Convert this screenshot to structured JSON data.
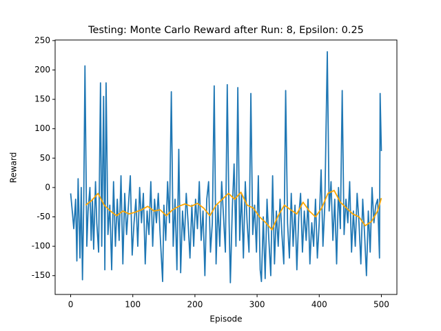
{
  "chart_data": {
    "type": "line",
    "title": "Testing: Monte Carlo Reward after Run: 8, Epsilon: 0.25",
    "x_label": "Episode",
    "y_label": "Reward",
    "xlim": [
      -25,
      525
    ],
    "ylim": [
      -182,
      251
    ],
    "xticks": [
      0,
      100,
      200,
      300,
      400,
      500
    ],
    "yticks": [
      -150,
      -100,
      -50,
      0,
      50,
      100,
      150,
      200,
      250
    ],
    "series": [
      {
        "color": "#1f77b4",
        "x": [
          0,
          3,
          5,
          8,
          10,
          12,
          15,
          17,
          19,
          21,
          23,
          26,
          28,
          31,
          33,
          35,
          37,
          40,
          42,
          45,
          48,
          50,
          53,
          55,
          57,
          60,
          63,
          66,
          69,
          72,
          75,
          78,
          81,
          84,
          87,
          90,
          93,
          96,
          99,
          102,
          105,
          108,
          111,
          114,
          117,
          120,
          123,
          126,
          129,
          132,
          135,
          138,
          141,
          144,
          148,
          150,
          153,
          156,
          159,
          162,
          165,
          168,
          171,
          174,
          177,
          180,
          183,
          186,
          189,
          192,
          195,
          198,
          201,
          204,
          207,
          210,
          213,
          216,
          219,
          222,
          225,
          228,
          231,
          234,
          237,
          240,
          243,
          246,
          249,
          252,
          255,
          257,
          260,
          263,
          266,
          269,
          272,
          275,
          278,
          281,
          284,
          287,
          290,
          293,
          296,
          299,
          302,
          305,
          307,
          310,
          313,
          316,
          319,
          322,
          325,
          328,
          331,
          334,
          337,
          340,
          343,
          346,
          349,
          352,
          355,
          358,
          361,
          364,
          367,
          370,
          373,
          376,
          379,
          382,
          385,
          388,
          391,
          394,
          397,
          400,
          403,
          406,
          409,
          413,
          416,
          419,
          422,
          425,
          428,
          431,
          434,
          437,
          440,
          443,
          446,
          449,
          452,
          455,
          458,
          461,
          464,
          467,
          470,
          473,
          476,
          479,
          482,
          485,
          488,
          491,
          494,
          497,
          498,
          500
        ],
        "values": [
          -10,
          -45,
          -70,
          -20,
          -125,
          15,
          -120,
          0,
          -157,
          -30,
          207,
          -100,
          -40,
          0,
          -90,
          -20,
          -105,
          10,
          -60,
          -110,
          178,
          -100,
          155,
          -140,
          178,
          -80,
          -30,
          -140,
          10,
          -100,
          -20,
          -90,
          20,
          -130,
          -10,
          -80,
          -30,
          20,
          -115,
          -60,
          -20,
          -100,
          0,
          -60,
          -10,
          -130,
          -40,
          -80,
          10,
          -100,
          -20,
          -60,
          -10,
          -80,
          -160,
          -30,
          -90,
          10,
          -60,
          163,
          -100,
          -20,
          -140,
          65,
          -145,
          -40,
          -90,
          -10,
          -60,
          -120,
          -30,
          -100,
          -20,
          -70,
          10,
          -90,
          -40,
          -150,
          -20,
          10,
          -110,
          -60,
          173,
          -130,
          -30,
          -100,
          10,
          -50,
          -110,
          175,
          -60,
          -162,
          -40,
          40,
          -100,
          170,
          -90,
          -10,
          -120,
          10,
          -60,
          -110,
          160,
          -80,
          -30,
          -110,
          20,
          -140,
          -160,
          -50,
          -155,
          -20,
          -90,
          -150,
          20,
          -130,
          -40,
          -100,
          -20,
          -80,
          -130,
          165,
          -60,
          -120,
          -10,
          -100,
          -30,
          -140,
          -50,
          -10,
          -110,
          -40,
          -90,
          -20,
          -130,
          -60,
          -100,
          -20,
          -120,
          -60,
          30,
          -100,
          -30,
          231,
          -40,
          10,
          -90,
          -20,
          -130,
          0,
          -70,
          165,
          -80,
          -20,
          -60,
          10,
          -110,
          -40,
          -100,
          -10,
          -60,
          -130,
          -20,
          -80,
          -150,
          -40,
          -110,
          0,
          -60,
          -30,
          -20,
          -120,
          160,
          62
        ]
      },
      {
        "color": "#ffa500",
        "x": [
          24,
          34,
          44,
          54,
          64,
          74,
          84,
          94,
          104,
          114,
          124,
          134,
          144,
          154,
          164,
          174,
          184,
          194,
          204,
          214,
          224,
          234,
          244,
          254,
          264,
          274,
          284,
          294,
          304,
          314,
          324,
          334,
          344,
          354,
          364,
          374,
          384,
          394,
          404,
          414,
          424,
          434,
          444,
          454,
          464,
          474,
          484,
          494,
          500
        ],
        "values": [
          -30,
          -22,
          -10,
          -30,
          -40,
          -48,
          -40,
          -45,
          -42,
          -38,
          -32,
          -40,
          -38,
          -48,
          -38,
          -32,
          -28,
          -32,
          -27,
          -35,
          -48,
          -30,
          -20,
          -10,
          -20,
          -8,
          -30,
          -35,
          -50,
          -60,
          -72,
          -48,
          -30,
          -38,
          -45,
          -25,
          -40,
          -50,
          -35,
          -10,
          -5,
          -25,
          -35,
          -45,
          -50,
          -65,
          -58,
          -40,
          -18
        ]
      }
    ]
  }
}
